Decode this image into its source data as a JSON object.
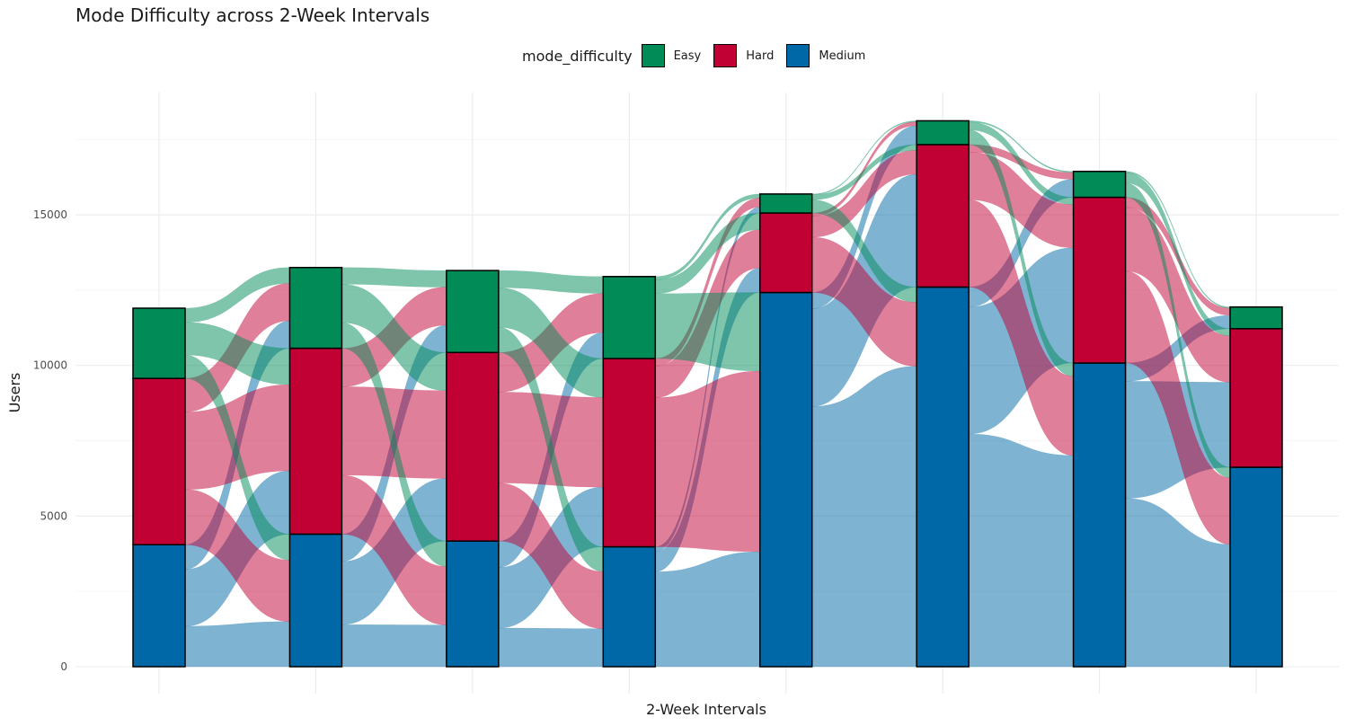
{
  "chart_data": {
    "type": "alluvial",
    "title": "Mode Difficulty across 2-Week Intervals",
    "xlabel": "2-Week Intervals",
    "ylabel": "Users",
    "legend_title": "mode_difficulty",
    "legend_position": "top",
    "grid": true,
    "ylim": [
      0,
      19000
    ],
    "yticks": [
      0,
      5000,
      10000,
      15000
    ],
    "colors": {
      "Easy": "#008b57",
      "Hard": "#c10033",
      "Medium": "#0068a6"
    },
    "series": [
      {
        "name": "Medium",
        "values": [
          4050,
          4400,
          4170,
          3980,
          12420,
          12600,
          10080,
          6620
        ]
      },
      {
        "name": "Hard",
        "values": [
          5520,
          6170,
          6260,
          6250,
          2640,
          4730,
          5500,
          4600
        ]
      },
      {
        "name": "Easy",
        "values": [
          2330,
          2680,
          2720,
          2720,
          630,
          790,
          860,
          720
        ]
      }
    ],
    "categories": [
      "",
      "",
      "",
      "",
      "",
      "",
      "",
      ""
    ]
  }
}
